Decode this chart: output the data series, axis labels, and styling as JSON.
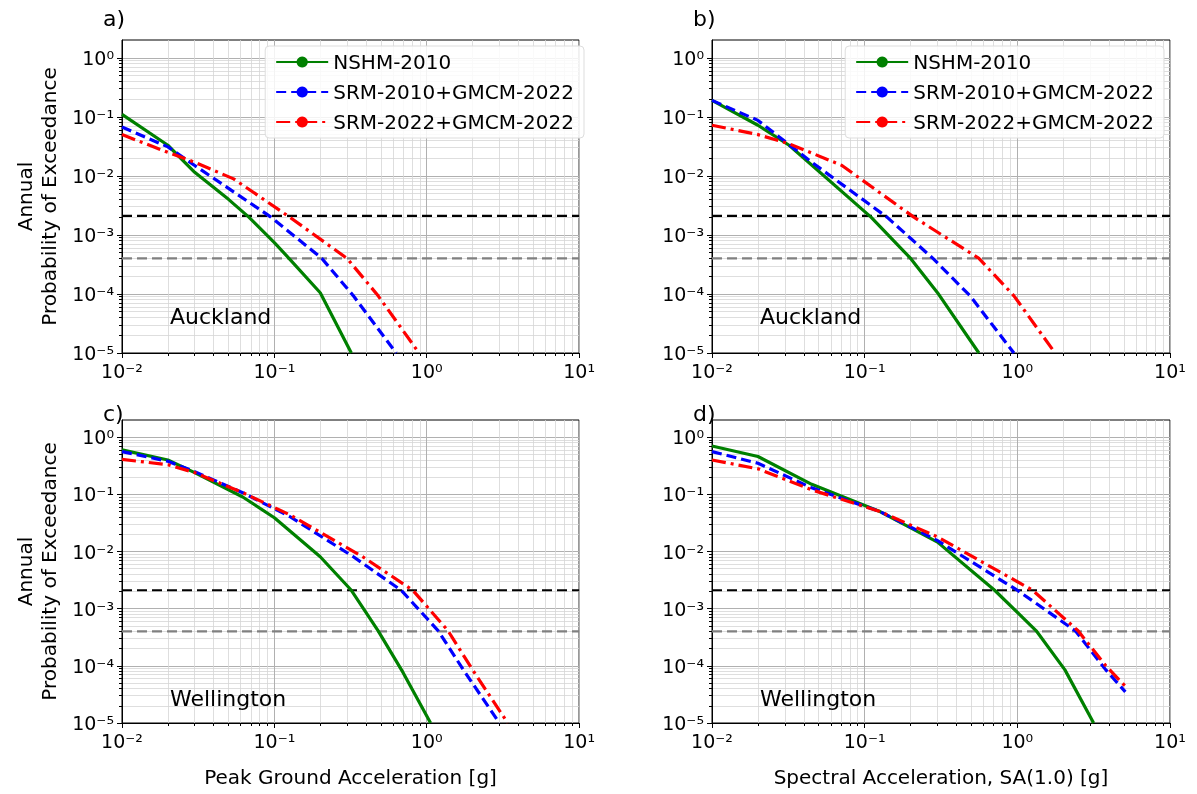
{
  "chart_data": [
    {
      "type": "line",
      "title": "a)",
      "ylabel": "Annual\nProbability of Exceedance",
      "annotations": [
        "Auckland"
      ],
      "log": "xy",
      "grid": true,
      "legend": "top right",
      "xlim": [
        0.01,
        10
      ],
      "ylim": [
        1e-05,
        2
      ],
      "xticks": [
        {
          "value": 0.01,
          "label": "10⁻²"
        },
        {
          "value": 0.1,
          "label": "10⁻¹"
        },
        {
          "value": 1,
          "label": "10⁰"
        },
        {
          "value": 10,
          "label": "10¹"
        }
      ],
      "yticks": [
        {
          "value": 1e-05,
          "label": "10⁻⁵"
        },
        {
          "value": 0.0001,
          "label": "10⁻⁴"
        },
        {
          "value": 0.001,
          "label": "10⁻³"
        },
        {
          "value": 0.01,
          "label": "10⁻²"
        },
        {
          "value": 0.1,
          "label": "10⁻¹"
        },
        {
          "value": 1,
          "label": "10⁰"
        }
      ],
      "ref_lines": [
        {
          "axis": "y",
          "value": 0.0021,
          "color": "#000000",
          "line_style": "dashed"
        },
        {
          "axis": "y",
          "value": 0.0004,
          "color": "#808080",
          "line_style": "dashed"
        }
      ],
      "series": [
        {
          "name": "NSHM-2010",
          "color": "#008000",
          "line_style": "solid",
          "x": [
            0.01,
            0.02,
            0.03,
            0.05,
            0.068,
            0.1,
            0.126,
            0.2,
            0.32
          ],
          "values": [
            0.11,
            0.033,
            0.0115,
            0.004,
            0.002,
            0.00074,
            0.00039,
            0.000105,
            1e-05
          ]
        },
        {
          "name": "SRM-2010+GMCM-2022",
          "color": "#0000ff",
          "line_style": "dashed",
          "x": [
            0.01,
            0.02,
            0.03,
            0.095,
            0.205,
            0.33,
            0.63
          ],
          "values": [
            0.067,
            0.031,
            0.015,
            0.002,
            0.0004,
            9.3e-05,
            1e-05
          ]
        },
        {
          "name": "SRM-2022+GMCM-2022",
          "color": "#ff0000",
          "line_style": "dashdot",
          "x": [
            0.01,
            0.02,
            0.03,
            0.054,
            0.126,
            0.3,
            0.48,
            0.89
          ],
          "values": [
            0.05,
            0.025,
            0.017,
            0.0089,
            0.002,
            0.0004,
            9.3e-05,
            1e-05
          ]
        }
      ]
    },
    {
      "type": "line",
      "title": "b)",
      "annotations": [
        "Auckland"
      ],
      "log": "xy",
      "grid": true,
      "legend": "top right",
      "xlim": [
        0.01,
        10
      ],
      "ylim": [
        1e-05,
        2
      ],
      "xticks": [
        {
          "value": 0.01,
          "label": "10⁻²"
        },
        {
          "value": 0.1,
          "label": "10⁻¹"
        },
        {
          "value": 1,
          "label": "10⁰"
        },
        {
          "value": 10,
          "label": "10¹"
        }
      ],
      "yticks": [
        {
          "value": 1e-05,
          "label": "10⁻⁵"
        },
        {
          "value": 0.0001,
          "label": "10⁻⁴"
        },
        {
          "value": 0.001,
          "label": "10⁻³"
        },
        {
          "value": 0.01,
          "label": "10⁻²"
        },
        {
          "value": 0.1,
          "label": "10⁻¹"
        },
        {
          "value": 1,
          "label": "10⁰"
        }
      ],
      "ref_lines": [
        {
          "axis": "y",
          "value": 0.0021,
          "color": "#000000",
          "line_style": "dashed"
        },
        {
          "axis": "y",
          "value": 0.0004,
          "color": "#808080",
          "line_style": "dashed"
        }
      ],
      "series": [
        {
          "name": "NSHM-2010",
          "color": "#008000",
          "line_style": "solid",
          "x": [
            0.01,
            0.02,
            0.032,
            0.11,
            0.2,
            0.3,
            0.56
          ],
          "values": [
            0.19,
            0.072,
            0.033,
            0.002,
            0.0004,
            0.000105,
            1e-05
          ]
        },
        {
          "name": "SRM-2010+GMCM-2022",
          "color": "#0000ff",
          "line_style": "dashed",
          "x": [
            0.01,
            0.02,
            0.045,
            0.14,
            0.28,
            0.49,
            0.95
          ],
          "values": [
            0.19,
            0.087,
            0.017,
            0.002,
            0.0004,
            9.3e-05,
            1e-05
          ]
        },
        {
          "name": "SRM-2022+GMCM-2022",
          "color": "#ff0000",
          "line_style": "dashdot",
          "x": [
            0.01,
            0.02,
            0.032,
            0.071,
            0.21,
            0.56,
            0.95,
            1.7
          ],
          "values": [
            0.072,
            0.05,
            0.035,
            0.015,
            0.002,
            0.0004,
            9.3e-05,
            1.15e-05
          ]
        }
      ]
    },
    {
      "type": "line",
      "title": "c)",
      "ylabel": "Annual\nProbability of Exceedance",
      "xlabel": "Peak Ground Acceleration [g]",
      "annotations": [
        "Wellington"
      ],
      "log": "xy",
      "grid": true,
      "xlim": [
        0.01,
        10
      ],
      "ylim": [
        1e-05,
        2
      ],
      "xticks": [
        {
          "value": 0.01,
          "label": "10⁻²"
        },
        {
          "value": 0.1,
          "label": "10⁻¹"
        },
        {
          "value": 1,
          "label": "10⁰"
        },
        {
          "value": 10,
          "label": "10¹"
        }
      ],
      "yticks": [
        {
          "value": 1e-05,
          "label": "10⁻⁵"
        },
        {
          "value": 0.0001,
          "label": "10⁻⁴"
        },
        {
          "value": 0.001,
          "label": "10⁻³"
        },
        {
          "value": 0.01,
          "label": "10⁻²"
        },
        {
          "value": 0.1,
          "label": "10⁻¹"
        },
        {
          "value": 1,
          "label": "10⁰"
        }
      ],
      "ref_lines": [
        {
          "axis": "y",
          "value": 0.0021,
          "color": "#000000",
          "line_style": "dashed"
        },
        {
          "axis": "y",
          "value": 0.0004,
          "color": "#808080",
          "line_style": "dashed"
        }
      ],
      "series": [
        {
          "color": "#008000",
          "line_style": "solid",
          "x": [
            0.01,
            0.02,
            0.03,
            0.062,
            0.1,
            0.2,
            0.32,
            0.48,
            0.7,
            1.06
          ],
          "values": [
            0.6,
            0.4,
            0.24,
            0.09,
            0.039,
            0.0081,
            0.0021,
            0.00041,
            7.6e-05,
            1e-05
          ]
        },
        {
          "color": "#0000ff",
          "line_style": "dashed",
          "x": [
            0.01,
            0.02,
            0.03,
            0.062,
            0.126,
            0.33,
            0.68,
            1.19,
            1.74,
            3.0
          ],
          "values": [
            0.56,
            0.38,
            0.25,
            0.107,
            0.041,
            0.0081,
            0.0021,
            0.00041,
            8.5e-05,
            1e-05
          ]
        },
        {
          "color": "#ff0000",
          "line_style": "dashdot",
          "x": [
            0.01,
            0.02,
            0.03,
            0.062,
            0.126,
            0.38,
            0.81,
            1.38,
            2.0,
            3.4
          ],
          "values": [
            0.41,
            0.33,
            0.24,
            0.107,
            0.044,
            0.0081,
            0.0021,
            0.00041,
            8.5e-05,
            1e-05
          ]
        }
      ]
    },
    {
      "type": "line",
      "title": "d)",
      "xlabel": "Spectral Acceleration, SA(1.0) [g]",
      "annotations": [
        "Wellington"
      ],
      "log": "xy",
      "grid": true,
      "xlim": [
        0.01,
        10
      ],
      "ylim": [
        1e-05,
        2
      ],
      "xticks": [
        {
          "value": 0.01,
          "label": "10⁻²"
        },
        {
          "value": 0.1,
          "label": "10⁻¹"
        },
        {
          "value": 1,
          "label": "10⁰"
        },
        {
          "value": 10,
          "label": "10¹"
        }
      ],
      "yticks": [
        {
          "value": 1e-05,
          "label": "10⁻⁵"
        },
        {
          "value": 0.0001,
          "label": "10⁻⁴"
        },
        {
          "value": 0.001,
          "label": "10⁻³"
        },
        {
          "value": 0.01,
          "label": "10⁻²"
        },
        {
          "value": 0.1,
          "label": "10⁻¹"
        },
        {
          "value": 1,
          "label": "10⁰"
        }
      ],
      "ref_lines": [
        {
          "axis": "y",
          "value": 0.0021,
          "color": "#000000",
          "line_style": "dashed"
        },
        {
          "axis": "y",
          "value": 0.0004,
          "color": "#808080",
          "line_style": "dashed"
        }
      ],
      "series": [
        {
          "color": "#008000",
          "line_style": "solid",
          "x": [
            0.01,
            0.02,
            0.045,
            0.126,
            0.3,
            0.71,
            1.33,
            2.05,
            3.16
          ],
          "values": [
            0.7,
            0.46,
            0.15,
            0.05,
            0.0146,
            0.0021,
            0.00041,
            8.5e-05,
            1e-05
          ]
        },
        {
          "color": "#0000ff",
          "line_style": "dashed",
          "x": [
            0.01,
            0.02,
            0.045,
            0.126,
            0.3,
            1.0,
            2.4,
            3.8,
            5.1
          ],
          "values": [
            0.56,
            0.35,
            0.13,
            0.05,
            0.0155,
            0.0021,
            0.00041,
            8.5e-05,
            3.5e-05
          ]
        },
        {
          "color": "#ff0000",
          "line_style": "dashdot",
          "x": [
            0.01,
            0.02,
            0.045,
            0.126,
            0.3,
            1.26,
            2.5,
            3.8,
            5.1
          ],
          "values": [
            0.4,
            0.28,
            0.12,
            0.05,
            0.018,
            0.0021,
            0.00041,
            0.0001,
            4.4e-05
          ]
        }
      ]
    }
  ]
}
